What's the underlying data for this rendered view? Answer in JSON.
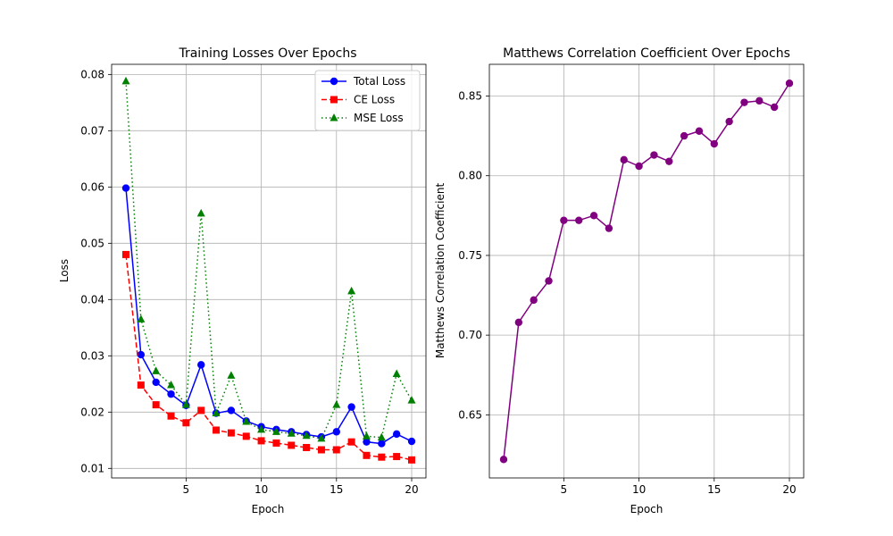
{
  "chart_data": [
    {
      "type": "line",
      "title": "Training Losses Over Epochs",
      "xlabel": "Epoch",
      "ylabel": "Loss",
      "xlim": [
        0.05,
        20.95
      ],
      "ylim": [
        0.0083,
        0.0818
      ],
      "xticks": [
        5,
        10,
        15,
        20
      ],
      "yticks": [
        0.01,
        0.02,
        0.03,
        0.04,
        0.05,
        0.06,
        0.07,
        0.08
      ],
      "ytick_labels": [
        "0.01",
        "0.02",
        "0.03",
        "0.04",
        "0.05",
        "0.06",
        "0.07",
        "0.08"
      ],
      "grid": true,
      "legend_position": "top-right",
      "x": [
        1,
        2,
        3,
        4,
        5,
        6,
        7,
        8,
        9,
        10,
        11,
        12,
        13,
        14,
        15,
        16,
        17,
        18,
        19,
        20
      ],
      "series": [
        {
          "name": "Total Loss",
          "color": "#0000ff",
          "linestyle": "solid",
          "marker": "circle",
          "values": [
            0.0598,
            0.0302,
            0.0253,
            0.0232,
            0.0212,
            0.0284,
            0.0198,
            0.0203,
            0.0184,
            0.0174,
            0.0169,
            0.0165,
            0.016,
            0.0156,
            0.0165,
            0.0209,
            0.0147,
            0.0144,
            0.0161,
            0.0148
          ]
        },
        {
          "name": "CE Loss",
          "color": "#ff0000",
          "linestyle": "dashed",
          "marker": "square",
          "values": [
            0.048,
            0.0248,
            0.0213,
            0.0193,
            0.0181,
            0.0203,
            0.0168,
            0.0163,
            0.0157,
            0.0149,
            0.0145,
            0.0141,
            0.0137,
            0.0133,
            0.0133,
            0.0147,
            0.0123,
            0.012,
            0.0121,
            0.0115
          ]
        },
        {
          "name": "MSE Loss",
          "color": "#008000",
          "linestyle": "dotted",
          "marker": "triangle",
          "values": [
            0.0788,
            0.0365,
            0.0273,
            0.0248,
            0.0213,
            0.0553,
            0.0198,
            0.0265,
            0.0183,
            0.0169,
            0.0165,
            0.0162,
            0.0158,
            0.0153,
            0.0213,
            0.0415,
            0.0157,
            0.0155,
            0.0268,
            0.0221
          ]
        }
      ]
    },
    {
      "type": "line",
      "title": "Matthews Correlation Coefficient Over Epochs",
      "xlabel": "Epoch",
      "ylabel": "Matthews Correlation Coefficient",
      "xlim": [
        0.05,
        20.95
      ],
      "ylim": [
        0.6104,
        0.8699
      ],
      "xticks": [
        5,
        10,
        15,
        20
      ],
      "yticks": [
        0.65,
        0.7,
        0.75,
        0.8,
        0.85
      ],
      "ytick_labels": [
        "0.65",
        "0.70",
        "0.75",
        "0.80",
        "0.85"
      ],
      "grid": true,
      "x": [
        1,
        2,
        3,
        4,
        5,
        6,
        7,
        8,
        9,
        10,
        11,
        12,
        13,
        14,
        15,
        16,
        17,
        18,
        19,
        20
      ],
      "series": [
        {
          "color": "#800080",
          "linestyle": "solid",
          "marker": "circle",
          "values": [
            0.622,
            0.708,
            0.722,
            0.734,
            0.772,
            0.772,
            0.775,
            0.767,
            0.81,
            0.806,
            0.813,
            0.809,
            0.825,
            0.828,
            0.82,
            0.834,
            0.846,
            0.847,
            0.843,
            0.858
          ]
        }
      ]
    }
  ]
}
